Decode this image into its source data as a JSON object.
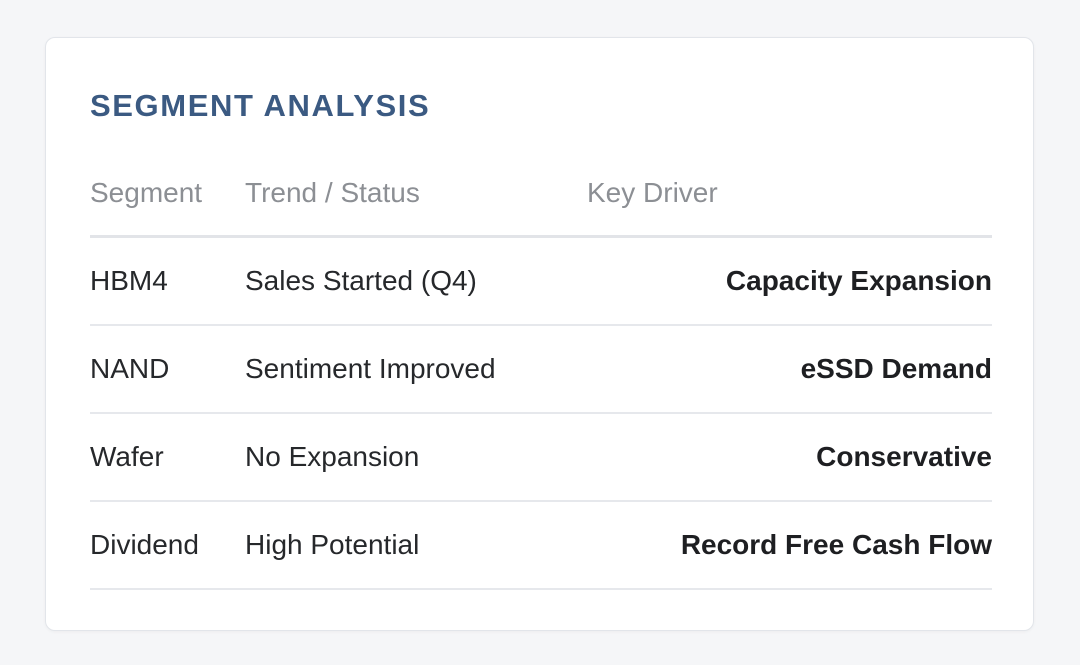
{
  "card": {
    "title": "SEGMENT ANALYSIS"
  },
  "table": {
    "columns": [
      "Segment",
      "Trend / Status",
      "Key Driver"
    ],
    "rows": [
      {
        "segment": "HBM4",
        "status": "Sales Started (Q4)",
        "driver": "Capacity Expansion"
      },
      {
        "segment": "NAND",
        "status": "Sentiment Improved",
        "driver": "eSSD Demand"
      },
      {
        "segment": "Wafer",
        "status": "No Expansion",
        "driver": "Conservative"
      },
      {
        "segment": "Dividend",
        "status": "High Potential",
        "driver": "Record Free Cash Flow"
      }
    ]
  }
}
